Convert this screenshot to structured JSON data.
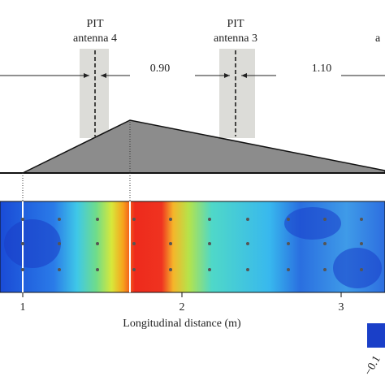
{
  "antennas": [
    {
      "line1": "PIT",
      "line2": "antenna 4"
    },
    {
      "line1": "PIT",
      "line2": "antenna 3"
    },
    {
      "line1": "",
      "line2": "a"
    }
  ],
  "distances": [
    "0.90",
    "1.10"
  ],
  "axis": {
    "ticks": [
      "1",
      "2",
      "3"
    ],
    "label": "Longitudinal distance (m)"
  },
  "colorbar": {
    "label": "−0.1"
  }
}
